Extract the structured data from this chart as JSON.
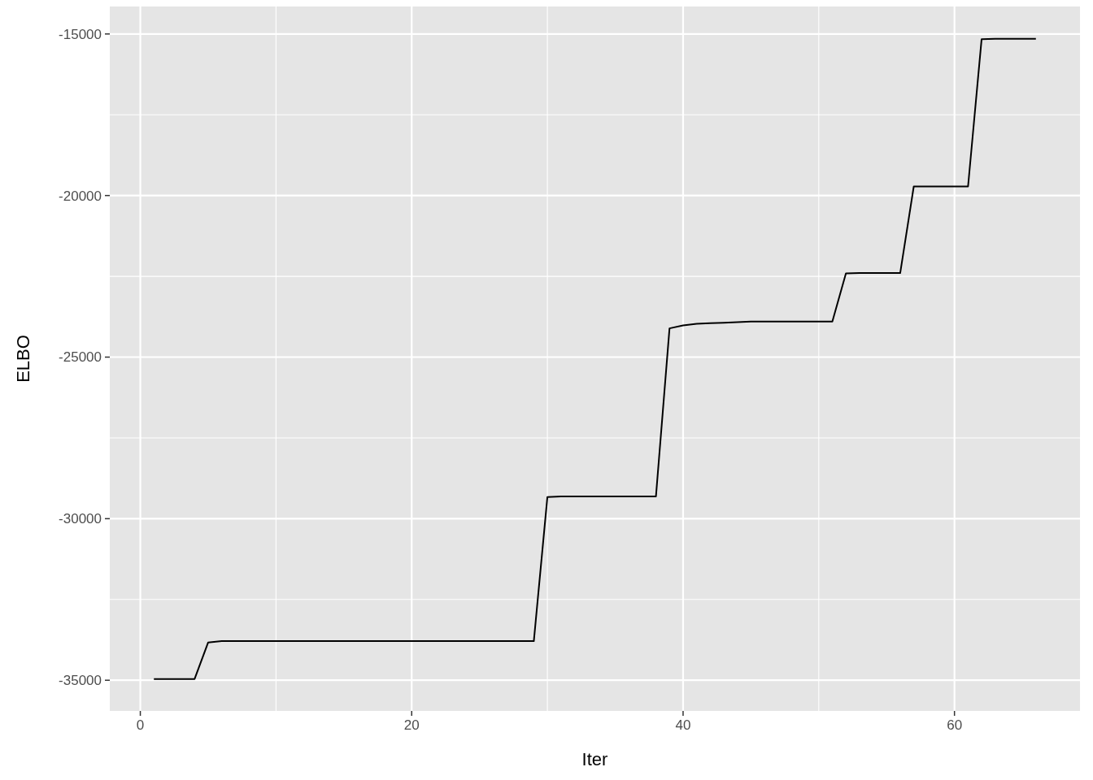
{
  "chart_data": {
    "type": "line",
    "xlabel": "Iter",
    "ylabel": "ELBO",
    "x": [
      1,
      2,
      3,
      4,
      5,
      6,
      7,
      8,
      9,
      10,
      11,
      12,
      13,
      14,
      15,
      16,
      17,
      18,
      19,
      20,
      21,
      22,
      23,
      24,
      25,
      26,
      27,
      28,
      29,
      30,
      31,
      32,
      33,
      34,
      35,
      36,
      37,
      38,
      39,
      40,
      41,
      42,
      43,
      44,
      45,
      46,
      47,
      48,
      49,
      50,
      51,
      52,
      53,
      54,
      55,
      56,
      57,
      58,
      59,
      60,
      61,
      62,
      63,
      64,
      65,
      66
    ],
    "series": [
      {
        "color": "#000000",
        "values": [
          -34960,
          -34960,
          -34960,
          -34960,
          -33830,
          -33790,
          -33790,
          -33790,
          -33790,
          -33790,
          -33790,
          -33790,
          -33790,
          -33790,
          -33790,
          -33790,
          -33790,
          -33790,
          -33790,
          -33790,
          -33790,
          -33790,
          -33790,
          -33790,
          -33790,
          -33790,
          -33790,
          -33790,
          -33790,
          -29330,
          -29310,
          -29310,
          -29310,
          -29310,
          -29310,
          -29310,
          -29310,
          -29310,
          -24110,
          -24020,
          -23970,
          -23950,
          -23935,
          -23920,
          -23900,
          -23900,
          -23900,
          -23900,
          -23900,
          -23900,
          -23900,
          -22410,
          -22400,
          -22400,
          -22400,
          -22400,
          -19720,
          -19720,
          -19720,
          -19720,
          -19720,
          -15160,
          -15150,
          -15150,
          -15150,
          -15150
        ]
      }
    ],
    "xlim": [
      -2.25,
      69.25
    ],
    "ylim": [
      -35950,
      -14150
    ],
    "xticks": [
      0,
      {
        "value": 10,
        "label": null
      },
      20,
      {
        "value": 30,
        "label": null
      },
      40,
      {
        "value": 50,
        "label": null
      },
      60
    ],
    "yticks": [
      -35000,
      {
        "value": -32500,
        "label": null
      },
      -30000,
      {
        "value": -27500,
        "label": null
      },
      -25000,
      {
        "value": -22500,
        "label": null
      },
      -20000,
      {
        "value": -17500,
        "label": null
      },
      -15000
    ],
    "grid": true,
    "line_style": "solid"
  }
}
